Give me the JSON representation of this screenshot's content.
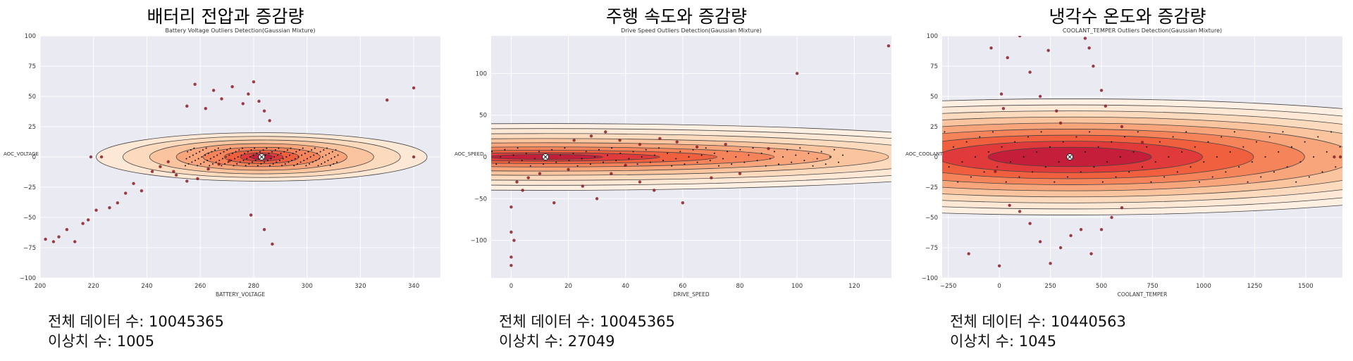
{
  "chart_data": [
    {
      "type": "scatter",
      "main_title": "배터리 전압과 증감량",
      "title": "Battery Voltage Outliers Detection(Gaussian Mixture)",
      "xlabel": "BATTERY_VOLTAGE",
      "ylabel": "AOC_VOLTAGE",
      "xlim": [
        200,
        350
      ],
      "ylim": [
        -100,
        100
      ],
      "xticks": [
        200,
        220,
        240,
        260,
        280,
        300,
        320,
        340
      ],
      "yticks": [
        -100,
        -75,
        -50,
        -25,
        0,
        25,
        50,
        75,
        100
      ],
      "grid": true,
      "center": [
        283,
        0
      ],
      "contours": [
        {
          "rx": 4,
          "ry": 2.2
        },
        {
          "rx": 8,
          "ry": 3.5
        },
        {
          "rx": 14,
          "ry": 5.5
        },
        {
          "rx": 22,
          "ry": 8
        },
        {
          "rx": 32,
          "ry": 11
        },
        {
          "rx": 42,
          "ry": 14
        },
        {
          "rx": 52,
          "ry": 17
        },
        {
          "rx": 62,
          "ry": 20
        }
      ],
      "outliers": [
        [
          202,
          -68
        ],
        [
          205,
          -70
        ],
        [
          207,
          -66
        ],
        [
          210,
          -60
        ],
        [
          213,
          -70
        ],
        [
          216,
          -55
        ],
        [
          218,
          -52
        ],
        [
          219,
          0
        ],
        [
          221,
          -44
        ],
        [
          223,
          0
        ],
        [
          226,
          -42
        ],
        [
          229,
          -38
        ],
        [
          232,
          -30
        ],
        [
          235,
          -22
        ],
        [
          238,
          -28
        ],
        [
          242,
          -12
        ],
        [
          245,
          -8
        ],
        [
          248,
          -4
        ],
        [
          250,
          -12
        ],
        [
          255,
          42
        ],
        [
          258,
          60
        ],
        [
          262,
          40
        ],
        [
          265,
          55
        ],
        [
          268,
          48
        ],
        [
          272,
          58
        ],
        [
          276,
          44
        ],
        [
          278,
          52
        ],
        [
          280,
          62
        ],
        [
          282,
          46
        ],
        [
          284,
          38
        ],
        [
          286,
          30
        ],
        [
          279,
          -48
        ],
        [
          284,
          -60
        ],
        [
          287,
          -72
        ],
        [
          330,
          47
        ],
        [
          340,
          57
        ],
        [
          340,
          0
        ],
        [
          251,
          -15
        ],
        [
          255,
          -20
        ],
        [
          259,
          -18
        ],
        [
          263,
          -10
        ],
        [
          267,
          -6
        ],
        [
          271,
          -3
        ]
      ],
      "stats": {
        "total_label": "전체 데이터 수: 10045365",
        "outlier_label": "이상치 수: 1005"
      }
    },
    {
      "type": "scatter",
      "main_title": "주행 속도와 증감량",
      "title": "Drive Speed Outliers Detection(Gaussian Mixture)",
      "xlabel": "DRIVE_SPEED",
      "ylabel": "AOC_SPEED",
      "xlim": [
        -7,
        133
      ],
      "ylim": [
        -145,
        145
      ],
      "xticks": [
        0,
        20,
        40,
        60,
        80,
        100,
        120
      ],
      "yticks": [
        -100,
        -50,
        0,
        50,
        100
      ],
      "grid": true,
      "center": [
        12,
        0
      ],
      "contours": [
        {
          "rx": 20,
          "ry": 3
        },
        {
          "rx": 40,
          "ry": 5
        },
        {
          "rx": 60,
          "ry": 8
        },
        {
          "rx": 80,
          "ry": 12
        },
        {
          "rx": 100,
          "ry": 17
        },
        {
          "rx": 120,
          "ry": 22
        },
        {
          "rx": 140,
          "ry": 28
        },
        {
          "rx": 160,
          "ry": 34
        },
        {
          "rx": 180,
          "ry": 40
        }
      ],
      "outliers": [
        [
          2,
          -30
        ],
        [
          4,
          -40
        ],
        [
          6,
          -25
        ],
        [
          10,
          -20
        ],
        [
          15,
          -55
        ],
        [
          20,
          -15
        ],
        [
          25,
          -35
        ],
        [
          30,
          -50
        ],
        [
          35,
          -20
        ],
        [
          40,
          -10
        ],
        [
          45,
          -30
        ],
        [
          50,
          -40
        ],
        [
          60,
          -55
        ],
        [
          70,
          -25
        ],
        [
          80,
          -20
        ],
        [
          22,
          20
        ],
        [
          28,
          25
        ],
        [
          33,
          30
        ],
        [
          38,
          20
        ],
        [
          45,
          15
        ],
        [
          52,
          22
        ],
        [
          58,
          18
        ],
        [
          65,
          12
        ],
        [
          75,
          15
        ],
        [
          90,
          10
        ],
        [
          100,
          100
        ],
        [
          132,
          133
        ],
        [
          0,
          -120
        ],
        [
          0,
          -130
        ],
        [
          0,
          -90
        ],
        [
          0,
          -60
        ],
        [
          1,
          -100
        ]
      ],
      "stats": {
        "total_label": "전체 데이터 수: 10045365",
        "outlier_label": "이상치 수: 27049"
      }
    },
    {
      "type": "scatter",
      "main_title": "냉각수 온도와 증감량",
      "title": "COOLANT_TEMPER Outliers Detection(Gaussian Mixture)",
      "xlabel": "COOLANT_TEMPER",
      "ylabel": "AOC_COOLANT",
      "xlim": [
        -280,
        1680
      ],
      "ylim": [
        -100,
        100
      ],
      "xticks": [
        -250,
        0,
        250,
        500,
        750,
        1000,
        1250,
        1500,
        1750
      ],
      "yticks": [
        -100,
        -75,
        -50,
        -25,
        0,
        25,
        50,
        75,
        100
      ],
      "grid": true,
      "center": [
        345,
        0
      ],
      "contours": [
        {
          "rx": 400,
          "ry": 8
        },
        {
          "rx": 650,
          "ry": 13
        },
        {
          "rx": 900,
          "ry": 18
        },
        {
          "rx": 1150,
          "ry": 23
        },
        {
          "rx": 1400,
          "ry": 28
        },
        {
          "rx": 1650,
          "ry": 33
        },
        {
          "rx": 1900,
          "ry": 38
        },
        {
          "rx": 2150,
          "ry": 43
        },
        {
          "rx": 2400,
          "ry": 48
        }
      ],
      "outliers": [
        [
          -40,
          90
        ],
        [
          10,
          52
        ],
        [
          20,
          40
        ],
        [
          40,
          82
        ],
        [
          100,
          100
        ],
        [
          150,
          70
        ],
        [
          200,
          50
        ],
        [
          240,
          88
        ],
        [
          280,
          38
        ],
        [
          300,
          28
        ],
        [
          420,
          98
        ],
        [
          440,
          90
        ],
        [
          460,
          75
        ],
        [
          500,
          55
        ],
        [
          520,
          42
        ],
        [
          -150,
          -80
        ],
        [
          0,
          -90
        ],
        [
          50,
          -40
        ],
        [
          100,
          -45
        ],
        [
          150,
          -55
        ],
        [
          200,
          -70
        ],
        [
          250,
          -88
        ],
        [
          300,
          -75
        ],
        [
          350,
          -65
        ],
        [
          400,
          -60
        ],
        [
          450,
          -80
        ],
        [
          500,
          -60
        ],
        [
          550,
          -50
        ],
        [
          600,
          -42
        ],
        [
          1640,
          0
        ],
        [
          1670,
          0
        ],
        [
          -20,
          -12
        ],
        [
          600,
          25
        ],
        [
          700,
          12
        ]
      ],
      "stats": {
        "total_label": "전체 데이터 수: 10440563",
        "outlier_label": "이상치 수: 1045"
      }
    }
  ]
}
